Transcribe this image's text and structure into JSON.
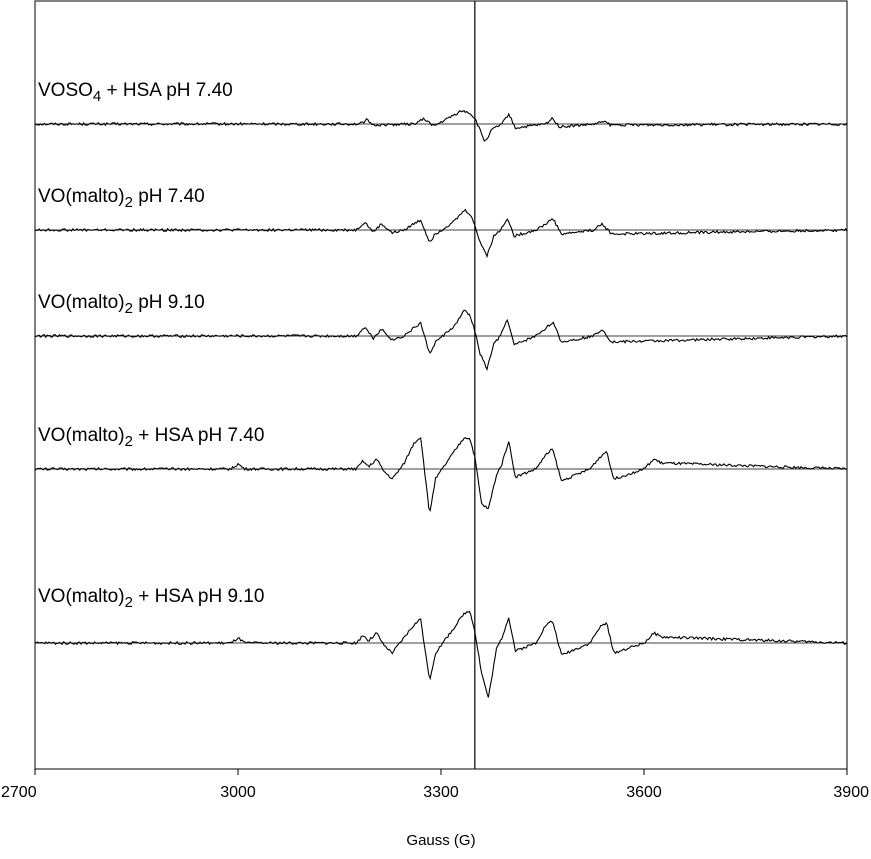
{
  "chart_data": {
    "type": "line",
    "title": "",
    "xlabel": "Gauss (G)",
    "ylabel": "",
    "xlim": [
      2700,
      3900
    ],
    "xticks": [
      2700,
      3000,
      3300,
      3600,
      3900
    ],
    "grid": false,
    "reference_line_x": 3350,
    "line_color": "#000000",
    "baseline_color": "#000000",
    "series": [
      {
        "name": "VOSO4 + HSA pH 7.40",
        "label_main": "VOSO",
        "label_sub": "4",
        "label_rest": " + HSA  pH 7.40",
        "baseline": 0,
        "x": [
          2700,
          3180,
          3190,
          3200,
          3260,
          3275,
          3290,
          3330,
          3340,
          3350,
          3365,
          3375,
          3390,
          3400,
          3410,
          3455,
          3465,
          3475,
          3530,
          3540,
          3550,
          3900
        ],
        "y": [
          0,
          0,
          4,
          -1,
          0,
          5,
          -2,
          13,
          12,
          6,
          -18,
          -6,
          0,
          10,
          -4,
          0,
          6,
          -3,
          0,
          3,
          -1,
          0
        ]
      },
      {
        "name": "VO(malto)2 pH 7.40",
        "label_main": "VO(malto)",
        "label_sub": "2",
        "label_rest": "  pH 7.40",
        "baseline": 0,
        "x": [
          2700,
          3175,
          3187,
          3200,
          3212,
          3228,
          3245,
          3262,
          3270,
          3283,
          3292,
          3320,
          3335,
          3343,
          3348,
          3358,
          3368,
          3378,
          3388,
          3398,
          3408,
          3440,
          3455,
          3465,
          3478,
          3525,
          3538,
          3552,
          3900
        ],
        "y": [
          0,
          0,
          8,
          -2,
          6,
          -3,
          0,
          7,
          10,
          -12,
          -4,
          9,
          20,
          16,
          8,
          -12,
          -26,
          -6,
          0,
          12,
          -6,
          0,
          6,
          12,
          -4,
          0,
          6,
          -4,
          0
        ]
      },
      {
        "name": "VO(malto)2 pH 9.10",
        "label_main": "VO(malto)",
        "label_sub": "2",
        "label_rest": "  pH 9.10",
        "baseline": 0,
        "x": [
          2700,
          3175,
          3187,
          3200,
          3212,
          3228,
          3245,
          3262,
          3270,
          3283,
          3292,
          3320,
          3335,
          3343,
          3348,
          3358,
          3368,
          3378,
          3388,
          3398,
          3408,
          3440,
          3455,
          3465,
          3478,
          3525,
          3538,
          3552,
          3900
        ],
        "y": [
          0,
          0,
          9,
          -2,
          7,
          -4,
          0,
          9,
          13,
          -18,
          -6,
          10,
          26,
          20,
          10,
          -18,
          -33,
          -8,
          0,
          17,
          -9,
          0,
          8,
          14,
          -6,
          0,
          7,
          -6,
          0
        ]
      },
      {
        "name": "VO(malto)2 + HSA pH 7.40",
        "label_main": "VO(malto)",
        "label_sub": "2",
        "label_rest": " + HSA  pH 7.40",
        "baseline": 0,
        "x": [
          2700,
          2990,
          3000,
          3010,
          3175,
          3185,
          3193,
          3205,
          3215,
          3228,
          3245,
          3260,
          3270,
          3283,
          3292,
          3320,
          3335,
          3343,
          3350,
          3360,
          3370,
          3382,
          3390,
          3400,
          3410,
          3440,
          3455,
          3465,
          3478,
          3520,
          3535,
          3545,
          3555,
          3600,
          3615,
          3625,
          3900
        ],
        "y": [
          0,
          0,
          5,
          0,
          0,
          8,
          2,
          10,
          -2,
          -10,
          5,
          26,
          32,
          -45,
          -10,
          18,
          32,
          30,
          12,
          -35,
          -40,
          -6,
          5,
          28,
          -8,
          0,
          14,
          20,
          -12,
          0,
          12,
          18,
          -10,
          0,
          10,
          6,
          0
        ]
      },
      {
        "name": "VO(malto)2 + HSA pH 9.10",
        "label_main": "VO(malto)",
        "label_sub": "2",
        "label_rest": " + HSA  pH 9.10",
        "baseline": 0,
        "x": [
          2700,
          2990,
          3000,
          3010,
          3175,
          3185,
          3193,
          3205,
          3215,
          3228,
          3245,
          3260,
          3270,
          3283,
          3292,
          3320,
          3335,
          3343,
          3350,
          3360,
          3370,
          3382,
          3390,
          3400,
          3410,
          3440,
          3455,
          3465,
          3478,
          3520,
          3535,
          3545,
          3555,
          3600,
          3615,
          3625,
          3900
        ],
        "y": [
          0,
          0,
          5,
          0,
          0,
          8,
          2,
          10,
          -2,
          -10,
          5,
          18,
          24,
          -38,
          -10,
          16,
          30,
          32,
          12,
          -30,
          -55,
          -6,
          5,
          26,
          -8,
          0,
          18,
          22,
          -12,
          0,
          16,
          20,
          -10,
          0,
          10,
          6,
          0
        ]
      }
    ]
  }
}
